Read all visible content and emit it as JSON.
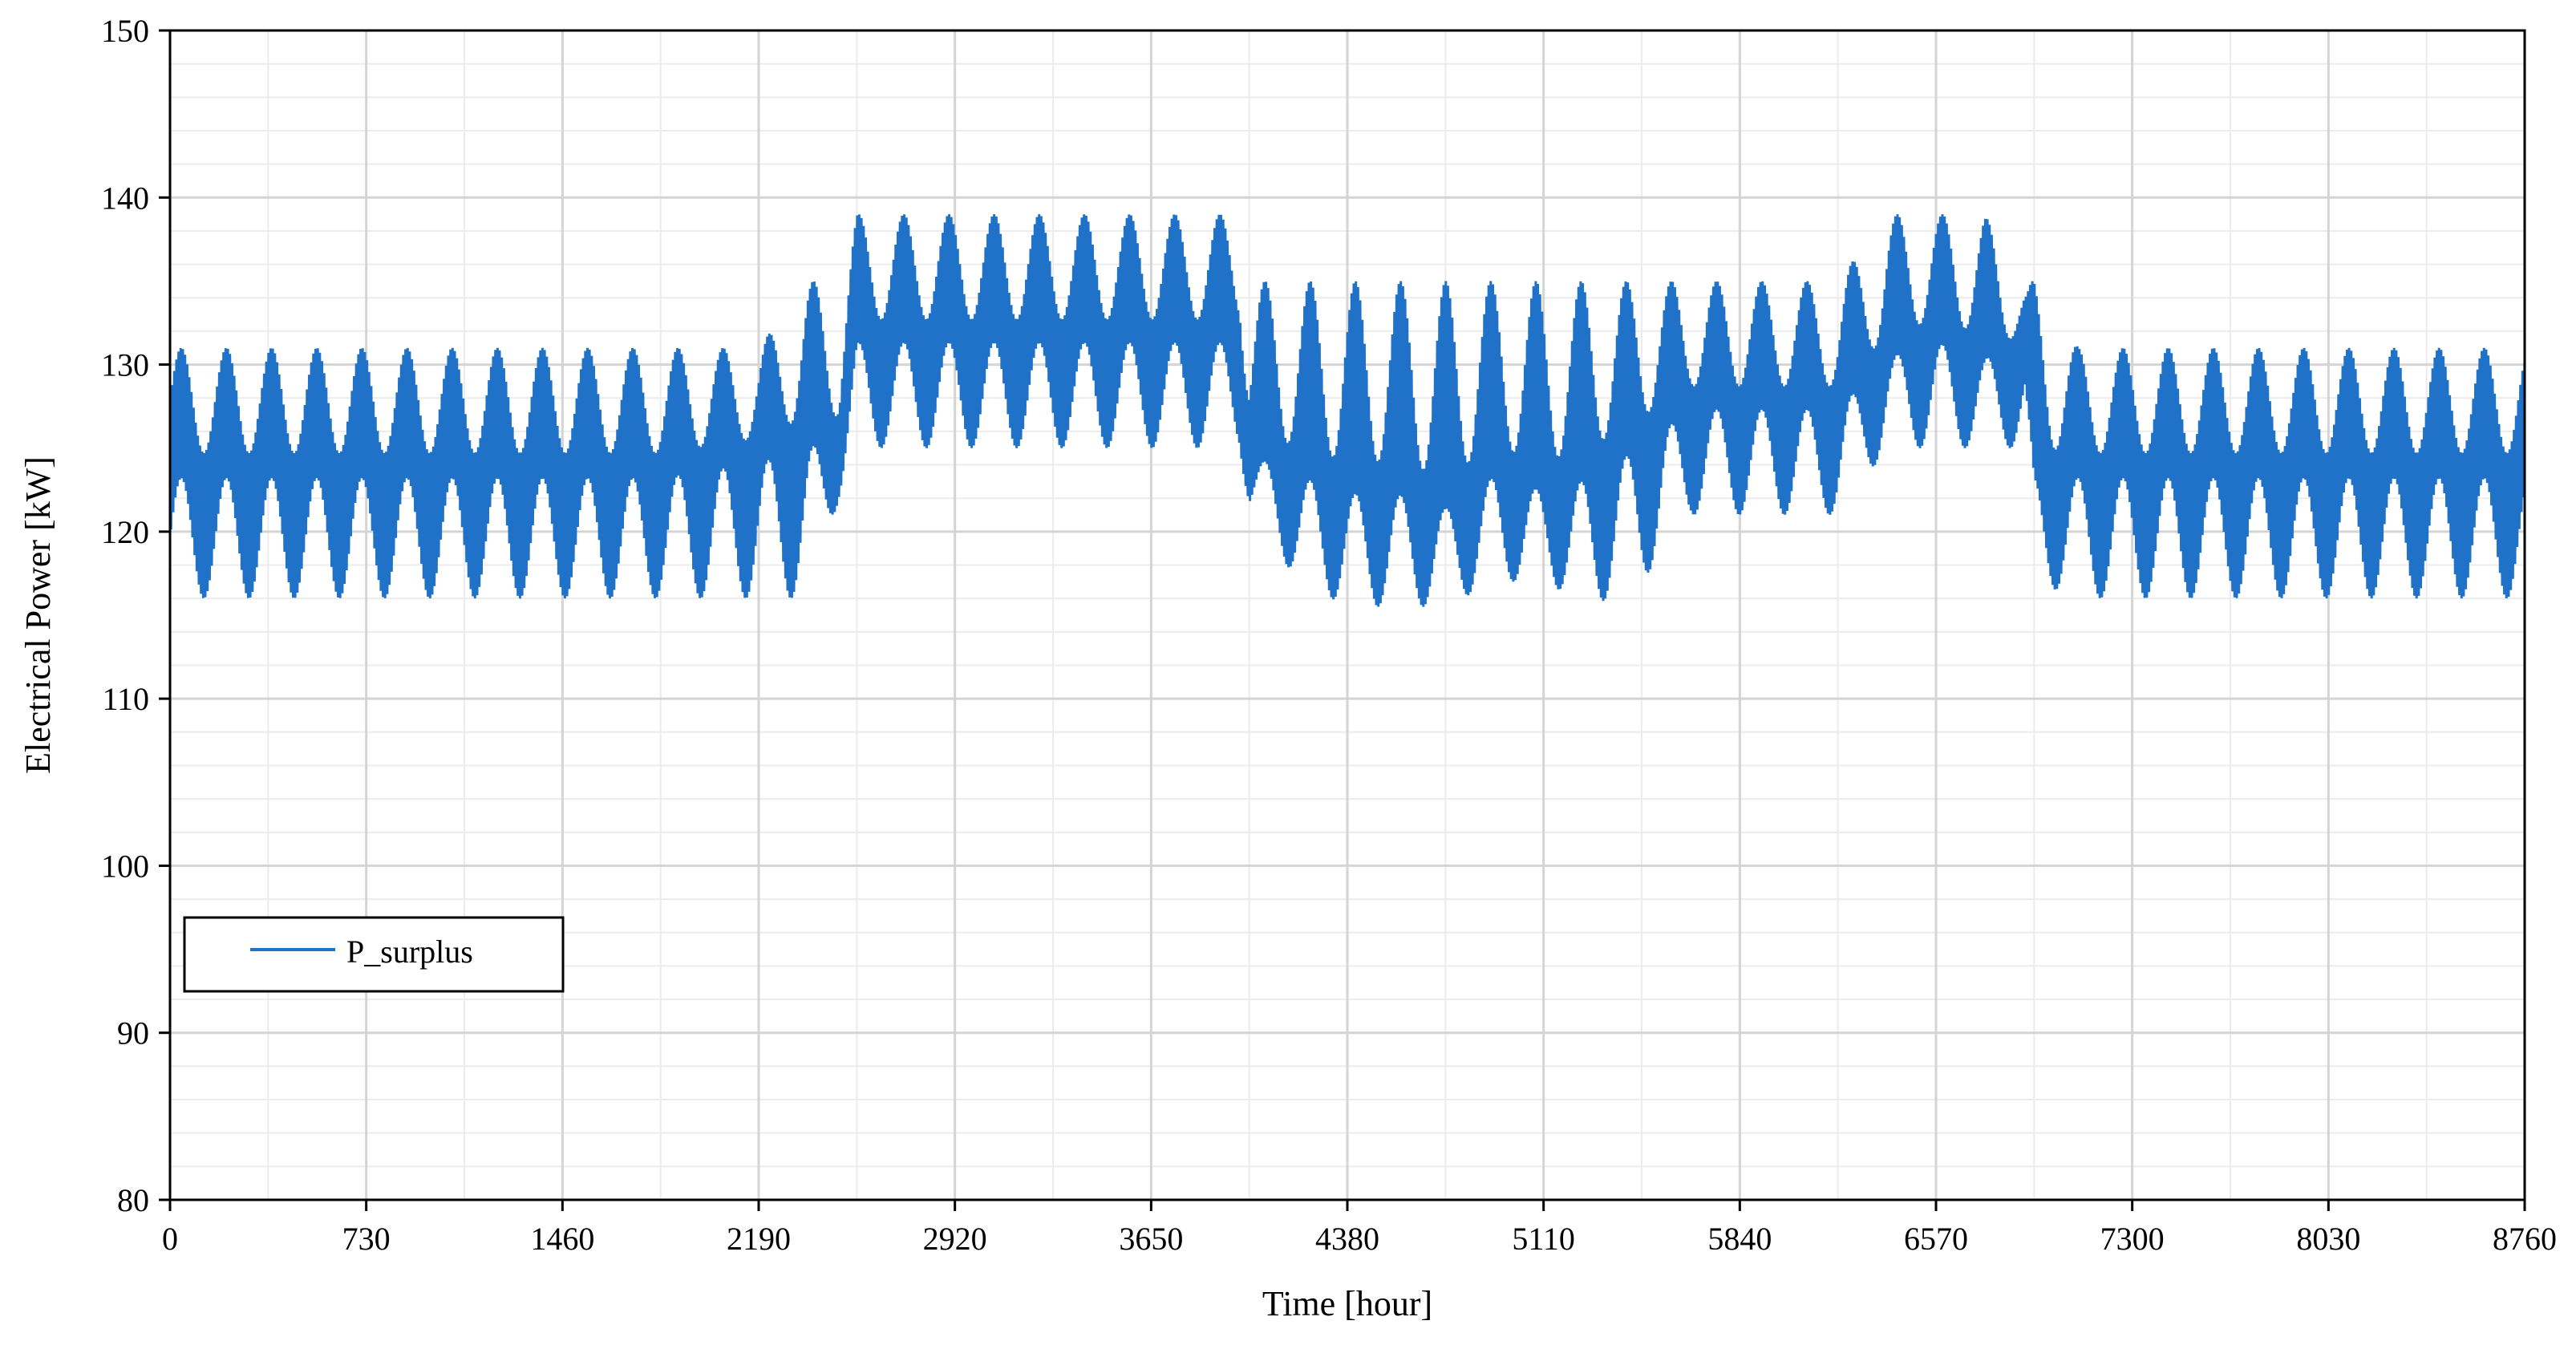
{
  "chart_data": {
    "type": "line",
    "title": "",
    "xlabel": "Time [hour]",
    "ylabel": "Electrical Power [kW]",
    "xlim": [
      0,
      8760
    ],
    "ylim": [
      80,
      150
    ],
    "x_ticks": [
      0,
      730,
      1460,
      2190,
      2920,
      3650,
      4380,
      5110,
      5840,
      6570,
      7300,
      8030,
      8760
    ],
    "x_tick_labels": [
      "0",
      "730",
      "1460",
      "2190",
      "2920",
      "3650",
      "4380",
      "5110",
      "5840",
      "6570",
      "7300",
      "8030",
      "8760"
    ],
    "y_ticks": [
      80,
      90,
      100,
      110,
      120,
      130,
      140,
      150
    ],
    "y_tick_labels": [
      "80",
      "90",
      "100",
      "110",
      "120",
      "130",
      "140",
      "150"
    ],
    "grid": true,
    "legend_position": "lower-left",
    "series": [
      {
        "name": "P_surplus",
        "color": "#1f72c8",
        "x": [
          0,
          365,
          730,
          1095,
          1460,
          1825,
          2190,
          2370,
          2490,
          2555,
          2920,
          3285,
          3650,
          3980,
          4015,
          4200,
          4380,
          4560,
          4745,
          4930,
          5110,
          5290,
          5475,
          5660,
          5840,
          6020,
          6205,
          6390,
          6570,
          6750,
          6900,
          6935,
          7100,
          7300,
          7665,
          8030,
          8395,
          8760
        ],
        "mean": [
          124,
          124,
          124,
          124,
          124,
          124,
          125,
          126,
          126,
          132,
          132,
          132,
          132,
          132,
          125,
          124,
          123,
          123,
          122,
          124,
          123,
          124,
          126,
          128,
          128,
          128,
          128,
          131,
          132,
          131,
          131,
          124,
          124,
          124,
          124,
          124,
          124,
          124
        ],
        "max": [
          131,
          131,
          131,
          131,
          131,
          131,
          131,
          135,
          135,
          139,
          139,
          139,
          139,
          139,
          135,
          135,
          135,
          135,
          135,
          135,
          135,
          135,
          135,
          135,
          135,
          135,
          135,
          139,
          139,
          139,
          135,
          135,
          131,
          131,
          131,
          131,
          131,
          131
        ],
        "min": [
          116,
          116,
          116,
          116,
          116,
          116,
          116,
          116,
          122,
          125,
          125,
          125,
          125,
          125,
          121,
          117,
          115.5,
          115.5,
          115.5,
          117,
          117,
          115.5,
          117,
          121,
          121,
          121,
          121,
          125,
          125,
          125,
          125,
          117,
          116,
          116,
          116,
          116,
          116,
          116
        ]
      }
    ]
  }
}
